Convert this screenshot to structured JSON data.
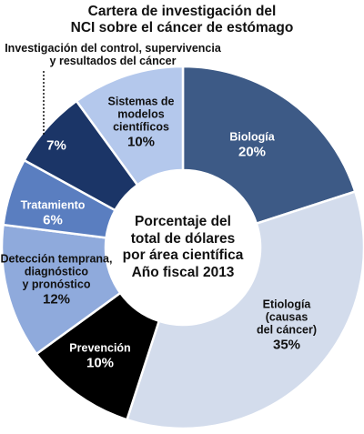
{
  "chart_data": {
    "type": "donut",
    "title": "Cartera de investigación del\nNCI sobre el cáncer de estómago",
    "subtitle": "Porcentaje del\ntotal de dólares\npor área científica\nAño fiscal 2013",
    "categories": [
      "Biología",
      "Etiología\n(causas\ndel cáncer)",
      "Prevención",
      "Detección temprana,\ndiagnóstico\ny pronóstico",
      "Tratamiento",
      "Investigación del control, supervivencia\ny resultados del cáncer",
      "Sistemas de\nmodelos\ncientíficos"
    ],
    "values": [
      20,
      35,
      10,
      12,
      6,
      7,
      10
    ],
    "value_labels": [
      "20%",
      "35%",
      "10%",
      "12%",
      "6%",
      "7%",
      "10%"
    ],
    "colors": [
      "#3d5a86",
      "#d3dcec",
      "#000000",
      "#8faadc",
      "#5a7ec0",
      "#1b3567",
      "#b4c8ec"
    ]
  }
}
